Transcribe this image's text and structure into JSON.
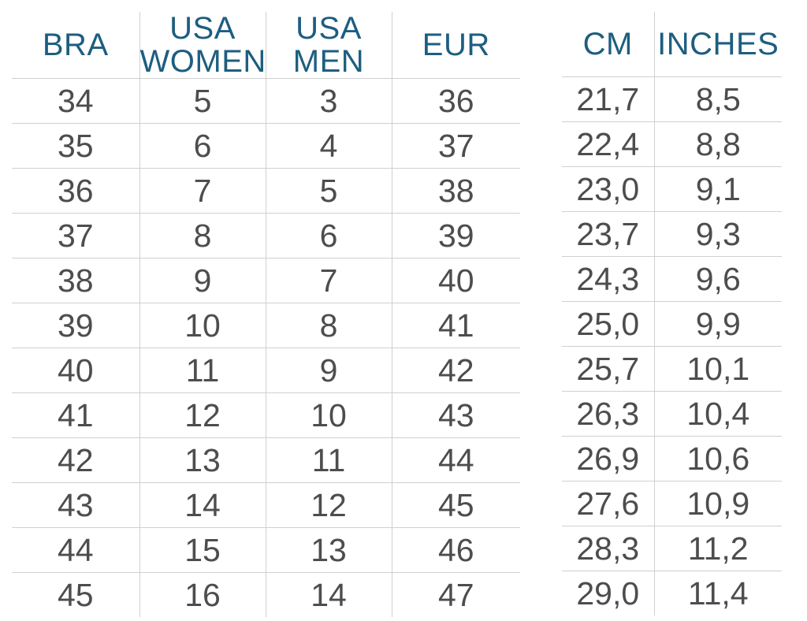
{
  "chart_data": [
    {
      "type": "table",
      "name": "shoe-size-conversion",
      "columns": [
        "BRA",
        "USA WOMEN",
        "USA MEN",
        "EUR"
      ],
      "rows": [
        [
          "34",
          "5",
          "3",
          "36"
        ],
        [
          "35",
          "6",
          "4",
          "37"
        ],
        [
          "36",
          "7",
          "5",
          "38"
        ],
        [
          "37",
          "8",
          "6",
          "39"
        ],
        [
          "38",
          "9",
          "7",
          "40"
        ],
        [
          "39",
          "10",
          "8",
          "41"
        ],
        [
          "40",
          "11",
          "9",
          "42"
        ],
        [
          "41",
          "12",
          "10",
          "43"
        ],
        [
          "42",
          "13",
          "11",
          "44"
        ],
        [
          "43",
          "14",
          "12",
          "45"
        ],
        [
          "44",
          "15",
          "13",
          "46"
        ],
        [
          "45",
          "16",
          "14",
          "47"
        ]
      ]
    },
    {
      "type": "table",
      "name": "foot-length",
      "columns": [
        "CM",
        "INCHES"
      ],
      "rows": [
        [
          "21,7",
          "8,5"
        ],
        [
          "22,4",
          "8,8"
        ],
        [
          "23,0",
          "9,1"
        ],
        [
          "23,7",
          "9,3"
        ],
        [
          "24,3",
          "9,6"
        ],
        [
          "25,0",
          "9,9"
        ],
        [
          "25,7",
          "10,1"
        ],
        [
          "26,3",
          "10,4"
        ],
        [
          "26,9",
          "10,6"
        ],
        [
          "27,6",
          "10,9"
        ],
        [
          "28,3",
          "11,2"
        ],
        [
          "29,0",
          "11,4"
        ]
      ]
    }
  ],
  "colors": {
    "header_text": "#1d5e80",
    "cell_text": "#4d4d4f",
    "grid_line": "#d0d0d0",
    "background": "#ffffff"
  }
}
